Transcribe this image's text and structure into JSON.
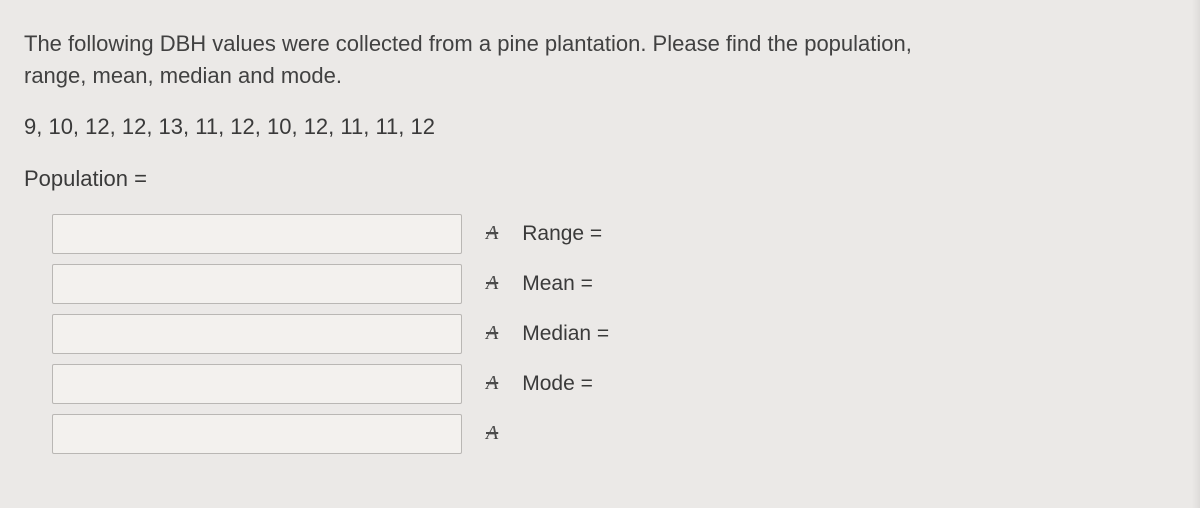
{
  "question": {
    "intro": "The following DBH values were collected from a pine plantation.  Please find the population, range, mean, median and mode.",
    "data_values": "9, 10, 12, 12, 13, 11, 12, 10, 12, 11, 11, 12",
    "population_label": "Population ="
  },
  "rows": [
    {
      "label": "Range =",
      "value": ""
    },
    {
      "label": "Mean =",
      "value": ""
    },
    {
      "label": "Median =",
      "value": ""
    },
    {
      "label": "Mode =",
      "value": ""
    },
    {
      "label": "",
      "value": ""
    }
  ],
  "icon_glyph": "A",
  "colors": {
    "background": "#ebe9e7",
    "text": "#3a3a3a",
    "input_border": "#b9b7b4",
    "input_bg": "#f3f1ee"
  },
  "typography": {
    "body_fontsize_pt": 16,
    "font_family": "Helvetica Neue, Arial, sans-serif"
  }
}
